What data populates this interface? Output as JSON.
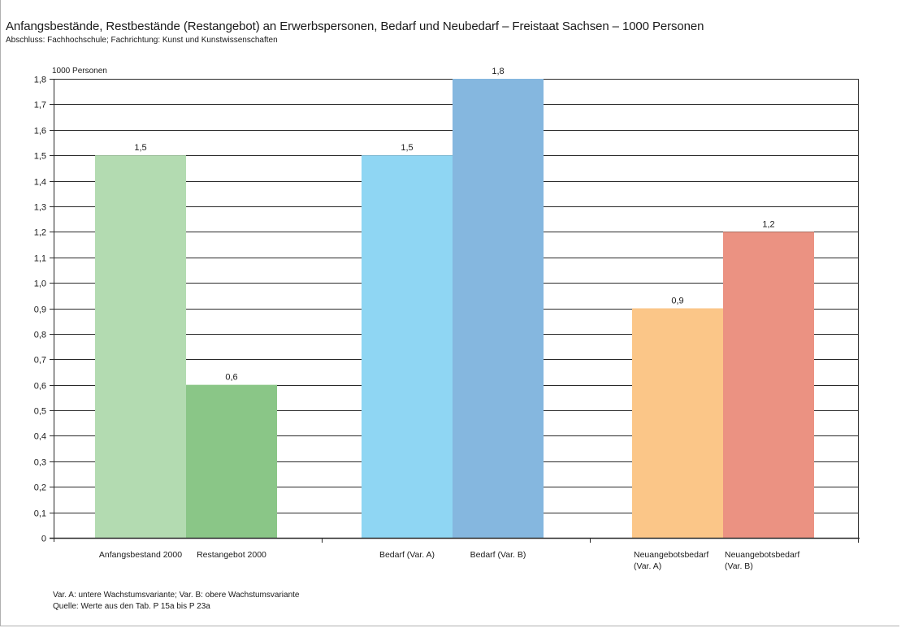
{
  "chart_data": {
    "type": "bar",
    "title": "Anfangsbestände, Restbestände (Restangebot) an Erwerbspersonen, Bedarf und Neubedarf – Freistaat Sachsen – 1000 Personen",
    "subtitle": "Abschluss: Fachhochschule; Fachrichtung: Kunst und Kunstwissenschaften",
    "ylabel": "1000 Personen",
    "ylim": [
      0,
      1.8
    ],
    "yticks": [
      "0",
      "0,1",
      "0,2",
      "0,3",
      "0,4",
      "0,5",
      "0,6",
      "0,7",
      "0,8",
      "0,9",
      "1,0",
      "1,1",
      "1,2",
      "1,3",
      "1,4",
      "1,5",
      "1,6",
      "1,7",
      "1,8"
    ],
    "grid": true,
    "bars": [
      {
        "category": [
          "Anfangsbestand 2000"
        ],
        "value": 1.5,
        "value_label": "1,5",
        "color": "#b3dbb1"
      },
      {
        "category": [
          "Restangebot 2000"
        ],
        "value": 0.6,
        "value_label": "0,6",
        "color": "#8ac687"
      },
      {
        "category": [
          "Bedarf (Var. A)"
        ],
        "value": 1.5,
        "value_label": "1,5",
        "color": "#8fd6f3"
      },
      {
        "category": [
          "Bedarf (Var. B)"
        ],
        "value": 1.8,
        "value_label": "1,8",
        "color": "#85b7df"
      },
      {
        "category": [
          "Neuangebotsbedarf",
          "(Var. A)"
        ],
        "value": 0.9,
        "value_label": "0,9",
        "color": "#fbc688"
      },
      {
        "category": [
          "Neuangebotsbedarf",
          "(Var. B)"
        ],
        "value": 1.2,
        "value_label": "1,2",
        "color": "#eb9282"
      }
    ],
    "footnotes": [
      "Var. A: untere Wachstumsvariante; Var. B: obere Wachstumsvariante",
      "Quelle: Werte aus den Tab. P 15a bis P 23a"
    ]
  }
}
